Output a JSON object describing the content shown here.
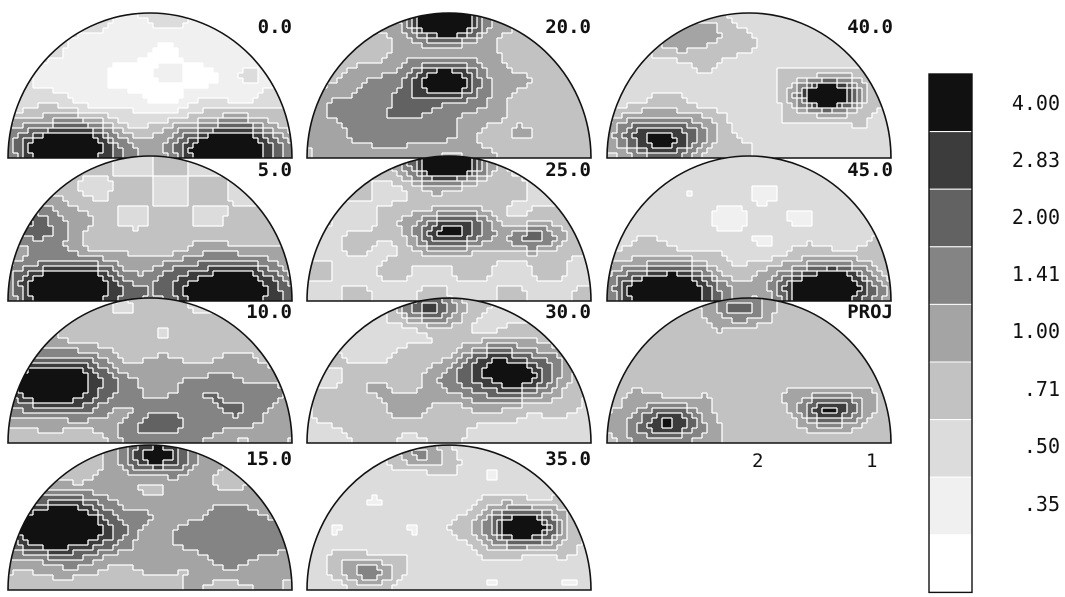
{
  "colors": {
    "levels": [
      "#111111",
      "#3c3c3c",
      "#626262",
      "#848484",
      "#a4a4a4",
      "#c2c2c2",
      "#dcdcdc",
      "#f0f0f0",
      "#ffffff"
    ],
    "contour": "#ffffff",
    "outline": "#111111"
  },
  "legend": {
    "labels": [
      "4.00",
      "2.83",
      "2.00",
      "1.41",
      "1.00",
      ".71",
      ".50",
      ".35"
    ]
  },
  "panels": [
    {
      "label": "0.0",
      "peaks": [
        [
          0.2,
          0.08,
          0.14,
          8.4
        ],
        [
          0.76,
          0.08,
          0.14,
          8.4
        ],
        [
          0.5,
          0.55,
          0.35,
          -2.0
        ]
      ],
      "base": 2.6
    },
    {
      "label": "5.0",
      "peaks": [
        [
          0.2,
          0.1,
          0.14,
          8.2
        ],
        [
          0.76,
          0.08,
          0.17,
          7.2
        ],
        [
          0.06,
          0.55,
          0.12,
          4.0
        ]
      ],
      "base": 2.5
    },
    {
      "label": "10.0",
      "peaks": [
        [
          0.15,
          0.42,
          0.15,
          7.0
        ],
        [
          0.75,
          0.3,
          0.2,
          2.8
        ],
        [
          0.5,
          0.1,
          0.1,
          2.4
        ]
      ],
      "base": 2.7
    },
    {
      "label": "15.0",
      "peaks": [
        [
          0.17,
          0.45,
          0.15,
          7.2
        ],
        [
          0.52,
          0.95,
          0.1,
          5.0
        ],
        [
          0.8,
          0.4,
          0.2,
          2.4
        ]
      ],
      "base": 3.0
    },
    {
      "label": "20.0",
      "peaks": [
        [
          0.48,
          0.96,
          0.09,
          8.4
        ],
        [
          0.48,
          0.55,
          0.1,
          5.0
        ],
        [
          0.3,
          0.3,
          0.2,
          2.4
        ]
      ],
      "base": 3.1
    },
    {
      "label": "25.0",
      "peaks": [
        [
          0.48,
          0.96,
          0.09,
          8.4
        ],
        [
          0.5,
          0.5,
          0.1,
          5.6
        ],
        [
          0.8,
          0.45,
          0.07,
          3.6
        ]
      ],
      "base": 2.4
    },
    {
      "label": "30.0",
      "peaks": [
        [
          0.7,
          0.5,
          0.14,
          6.6
        ],
        [
          0.43,
          0.95,
          0.08,
          5.0
        ],
        [
          0.3,
          0.3,
          0.2,
          1.6
        ]
      ],
      "base": 2.0
    },
    {
      "label": "35.0",
      "peaks": [
        [
          0.75,
          0.45,
          0.1,
          7.6
        ],
        [
          0.2,
          0.15,
          0.08,
          3.0
        ],
        [
          0.4,
          0.95,
          0.08,
          2.6
        ]
      ],
      "base": 1.9
    },
    {
      "label": "40.0",
      "peaks": [
        [
          0.77,
          0.45,
          0.08,
          8.3
        ],
        [
          0.18,
          0.15,
          0.12,
          6.0
        ],
        [
          0.3,
          0.85,
          0.1,
          2.2
        ]
      ],
      "base": 2.1
    },
    {
      "label": "45.0",
      "peaks": [
        [
          0.2,
          0.08,
          0.13,
          8.4
        ],
        [
          0.76,
          0.1,
          0.12,
          8.4
        ],
        [
          0.5,
          0.6,
          0.3,
          -1.0
        ]
      ],
      "base": 2.6
    },
    {
      "label": "PROJ",
      "peaks": [
        [
          0.2,
          0.15,
          0.1,
          4.4
        ],
        [
          0.78,
          0.25,
          0.08,
          4.6
        ],
        [
          0.45,
          0.95,
          0.08,
          2.8
        ]
      ],
      "base": 3.0
    }
  ],
  "proj_axis": {
    "marks": [
      "2",
      "1"
    ]
  }
}
